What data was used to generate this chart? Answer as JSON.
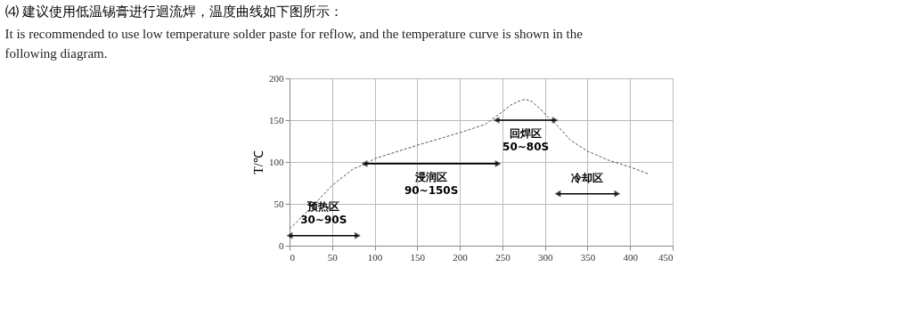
{
  "chart_data": {
    "type": "line",
    "title": "⑷ 建议使用低温锡膏进行迴流焊，温度曲线如下图所示：",
    "subtitle": [
      "It is recommended to use low temperature solder paste for reflow, and the temperature curve is shown in the",
      "following diagram."
    ],
    "ylabel": "T/℃",
    "series": [
      {
        "color": "#555555",
        "line_style": "dashed",
        "marker": "none",
        "x": [
          0,
          25,
          50,
          75,
          88,
          100,
          150,
          200,
          230,
          250,
          260,
          270,
          277,
          285,
          295,
          305,
          315,
          330,
          350,
          375,
          400,
          421
        ],
        "values": [
          20,
          45,
          72,
          92,
          97,
          104,
          120,
          135,
          145,
          160,
          168,
          173,
          175,
          172,
          163,
          152,
          143,
          126,
          113,
          102,
          94,
          86
        ]
      },
      {
        "name": "预热区\n30~90S",
        "color": "#000000",
        "line_style": "solid",
        "marker": "triangle",
        "x": [
          0,
          80
        ],
        "values": [
          12,
          12
        ]
      },
      {
        "name": "浸润区\n90~150S",
        "color": "#000000",
        "line_style": "solid",
        "marker": "triangle",
        "x": [
          88,
          245
        ],
        "values": [
          98,
          98
        ]
      },
      {
        "name": "回焊区\n50~80S",
        "color": "#000000",
        "line_style": "solid",
        "marker": "triangle",
        "x": [
          243,
          312
        ],
        "values": [
          150,
          150
        ]
      },
      {
        "name": "冷却区",
        "color": "#000000",
        "line_style": "solid",
        "marker": "triangle",
        "x": [
          315,
          385
        ],
        "values": [
          62,
          62
        ]
      }
    ],
    "xlim": [
      0,
      450
    ],
    "xticks": [
      0,
      50,
      100,
      150,
      200,
      250,
      300,
      350,
      400,
      450
    ],
    "ylim": [
      0,
      200
    ],
    "yticks": [
      0,
      50,
      100,
      150,
      200
    ],
    "grid": true
  }
}
